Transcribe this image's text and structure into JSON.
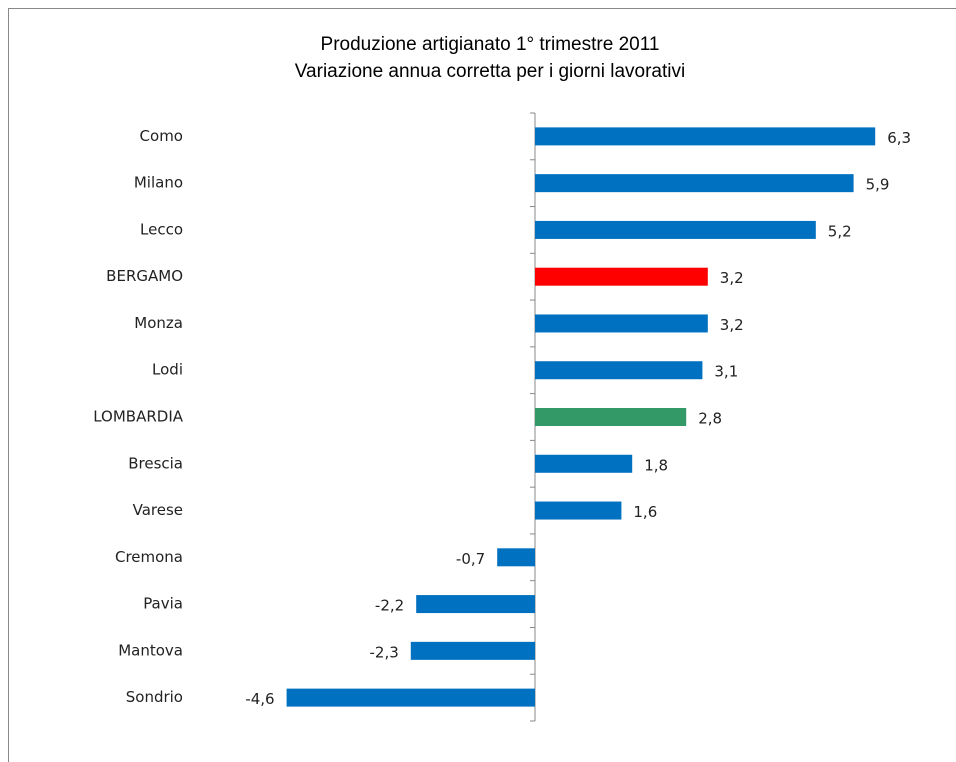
{
  "chart_data": {
    "type": "hbar",
    "title": "Produzione artigianato 1° trimestre 2011",
    "subtitle": "Variazione annua corretta per i giorni lavorativi",
    "categories": [
      "Como",
      "Milano",
      "Lecco",
      "BERGAMO",
      "Monza",
      "Lodi",
      "LOMBARDIA",
      "Brescia",
      "Varese",
      "Cremona",
      "Pavia",
      "Mantova",
      "Sondrio"
    ],
    "values": [
      6.3,
      5.9,
      5.2,
      3.2,
      3.2,
      3.1,
      2.8,
      1.8,
      1.6,
      -0.7,
      -2.2,
      -2.3,
      -4.6
    ],
    "value_labels": [
      "6,3",
      "5,9",
      "5,2",
      "3,2",
      "3,2",
      "3,1",
      "2,8",
      "1,8",
      "1,6",
      "-0,7",
      "-2,2",
      "-2,3",
      "-4,6"
    ],
    "colors": [
      "#0070c0",
      "#0070c0",
      "#0070c0",
      "#ff0000",
      "#0070c0",
      "#0070c0",
      "#339966",
      "#0070c0",
      "#0070c0",
      "#0070c0",
      "#0070c0",
      "#0070c0",
      "#0070c0"
    ],
    "xlim": [
      -5,
      7
    ]
  }
}
